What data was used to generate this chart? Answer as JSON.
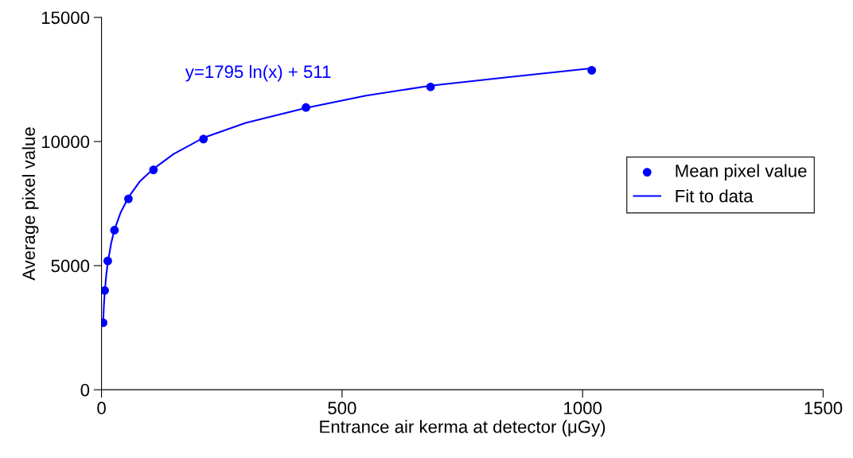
{
  "chart_data": {
    "type": "scatter",
    "xlabel": "Entrance air kerma at detector (μGy)",
    "ylabel": "Average pixel value",
    "xlim": [
      0,
      1500
    ],
    "xticks": [
      0,
      500,
      1000,
      1500
    ],
    "ylim": [
      0,
      15000
    ],
    "yticks": [
      0,
      5000,
      10000,
      15000
    ],
    "grid": false,
    "legend": "right",
    "series": [
      {
        "name": "Mean pixel value",
        "color": "#0000ff",
        "marker": "circle",
        "x": [
          3.3,
          6.6,
          13,
          27,
          56,
          108,
          212,
          425,
          684,
          1019
        ],
        "values": [
          2700,
          4000,
          5190,
          6430,
          7690,
          8860,
          10100,
          11370,
          12200,
          12870
        ]
      },
      {
        "name": "Fit to data",
        "type": "line",
        "color": "#0000ff",
        "marker": "none",
        "line_style": "solid",
        "x": [
          3.3,
          5,
          6.6,
          10,
          13,
          20,
          27,
          40,
          56,
          80,
          108,
          150,
          212,
          300,
          425,
          550,
          684,
          850,
          1019
        ],
        "values": [
          2650,
          3400,
          3900,
          4650,
          5100,
          5900,
          6450,
          7150,
          7750,
          8400,
          8900,
          9500,
          10150,
          10750,
          11350,
          11850,
          12250,
          12600,
          12950
        ]
      }
    ],
    "annotations": [
      "y=1795 ln(x) + 511"
    ]
  }
}
